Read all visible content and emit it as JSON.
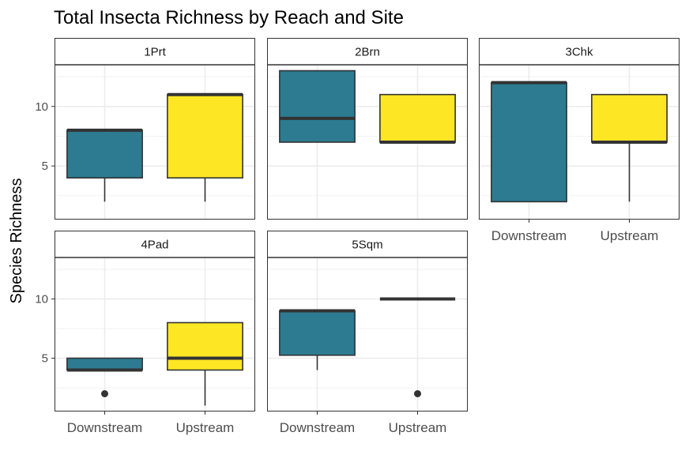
{
  "chart_data": {
    "type": "boxplot",
    "title": "Total Insecta Richness by Reach and Site",
    "ylabel": "Species Richness",
    "xlabel": "",
    "ylim": [
      0.5,
      13.5
    ],
    "yticks": [
      5,
      10
    ],
    "categories": [
      "Downstream",
      "Upstream"
    ],
    "colors": {
      "Downstream": "#2c7b91",
      "Upstream": "#fde725"
    },
    "facets": [
      {
        "name": "1Prt",
        "boxes": [
          {
            "category": "Downstream",
            "min": 2,
            "q1": 4,
            "median": 8,
            "q3": 8,
            "max": 8,
            "outliers": []
          },
          {
            "category": "Upstream",
            "min": 2,
            "q1": 4,
            "median": 11,
            "q3": 11,
            "max": 11,
            "outliers": []
          }
        ]
      },
      {
        "name": "2Brn",
        "boxes": [
          {
            "category": "Downstream",
            "min": 7,
            "q1": 7,
            "median": 9,
            "q3": 13,
            "max": 13,
            "outliers": []
          },
          {
            "category": "Upstream",
            "min": 7,
            "q1": 7,
            "median": 7,
            "q3": 11,
            "max": 11,
            "outliers": []
          }
        ]
      },
      {
        "name": "3Chk",
        "boxes": [
          {
            "category": "Downstream",
            "min": 2,
            "q1": 2,
            "median": 12,
            "q3": 12,
            "max": 12,
            "outliers": []
          },
          {
            "category": "Upstream",
            "min": 2,
            "q1": 7,
            "median": 7,
            "q3": 11,
            "max": 11,
            "outliers": []
          }
        ]
      },
      {
        "name": "4Pad",
        "boxes": [
          {
            "category": "Downstream",
            "min": 4,
            "q1": 4,
            "median": 4,
            "q3": 5,
            "max": 5,
            "outliers": [
              2
            ]
          },
          {
            "category": "Upstream",
            "min": 1,
            "q1": 4,
            "median": 5,
            "q3": 8,
            "max": 8,
            "outliers": []
          }
        ]
      },
      {
        "name": "5Sqm",
        "boxes": [
          {
            "category": "Downstream",
            "min": 4,
            "q1": 5.25,
            "median": 9,
            "q3": 9,
            "max": 9,
            "outliers": []
          },
          {
            "category": "Upstream",
            "min": 10,
            "q1": 10,
            "median": 10,
            "q3": 10,
            "max": 10,
            "outliers": [
              2
            ]
          }
        ]
      }
    ]
  }
}
